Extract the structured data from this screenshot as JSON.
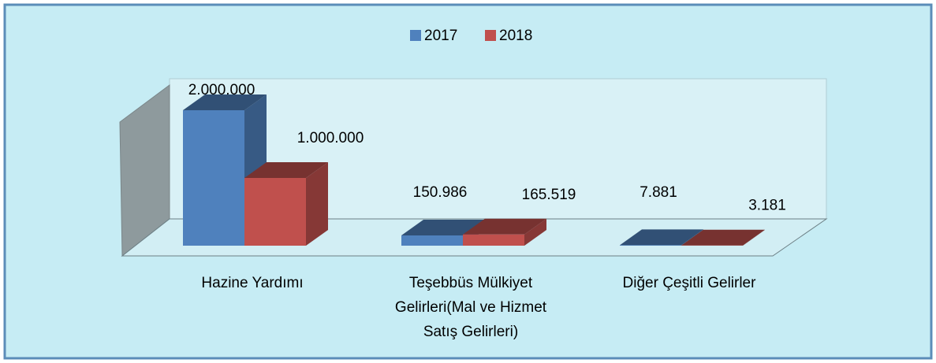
{
  "chart_data": {
    "type": "bar3d",
    "categories": [
      "Hazine Yardımı",
      "Teşebbüs Mülkiyet Gelirleri(Mal ve Hizmet Satış Gelirleri)",
      "Diğer Çeşitli Gelirler"
    ],
    "series": [
      {
        "name": "2017",
        "color": "#4f81bd",
        "values": [
          2000000,
          150986,
          7881
        ],
        "value_labels": [
          "2.000.000",
          "150.986",
          "7.881"
        ]
      },
      {
        "name": "2018",
        "color": "#c0504d",
        "values": [
          1000000,
          165519,
          3181
        ],
        "value_labels": [
          "1.000.000",
          "165.519",
          "3.181"
        ]
      }
    ]
  }
}
